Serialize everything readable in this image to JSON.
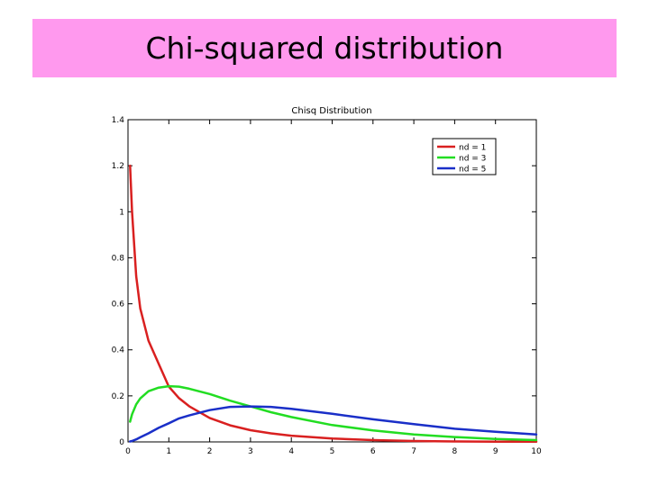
{
  "slide": {
    "title": "Chi-squared distribution"
  },
  "chart_data": {
    "type": "line",
    "title": "Chisq Distribution",
    "xlabel": "",
    "ylabel": "",
    "xlim": [
      0,
      10
    ],
    "ylim": [
      0,
      1.4
    ],
    "x_ticks": [
      0,
      1,
      2,
      3,
      4,
      5,
      6,
      7,
      8,
      9,
      10
    ],
    "y_ticks": [
      0,
      0.2,
      0.4,
      0.6,
      0.8,
      1,
      1.2,
      1.4
    ],
    "y_tick_labels": [
      "0",
      "0.2",
      "0.4",
      "0.6",
      "0.8",
      "1",
      "1.2",
      "1.4"
    ],
    "grid": false,
    "legend_position": "top-right",
    "x": [
      0.05,
      0.1,
      0.2,
      0.3,
      0.5,
      0.75,
      1,
      1.25,
      1.5,
      2,
      2.5,
      3,
      3.5,
      4,
      5,
      6,
      7,
      8,
      9,
      10
    ],
    "series": [
      {
        "name": "nd = 1",
        "color": "#d92020",
        "values": [
          1.2,
          1.0,
          0.72,
          0.58,
          0.44,
          0.34,
          0.24,
          0.19,
          0.155,
          0.104,
          0.072,
          0.051,
          0.037,
          0.027,
          0.015,
          0.008,
          0.004,
          0.002,
          0.001,
          0.001
        ]
      },
      {
        "name": "nd = 3",
        "color": "#22dd22",
        "values": [
          0.088,
          0.12,
          0.163,
          0.189,
          0.22,
          0.236,
          0.242,
          0.24,
          0.231,
          0.208,
          0.179,
          0.154,
          0.129,
          0.108,
          0.073,
          0.05,
          0.032,
          0.021,
          0.013,
          0.008
        ]
      },
      {
        "name": "nd = 5",
        "color": "#1a2fc8",
        "values": [
          0.002,
          0.004,
          0.011,
          0.02,
          0.037,
          0.061,
          0.081,
          0.102,
          0.115,
          0.138,
          0.152,
          0.154,
          0.152,
          0.144,
          0.122,
          0.098,
          0.077,
          0.057,
          0.044,
          0.032
        ]
      }
    ]
  }
}
